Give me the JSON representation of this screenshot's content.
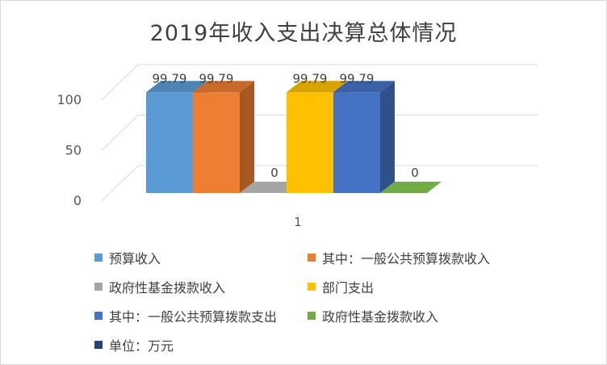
{
  "chart_data": {
    "type": "bar",
    "title": "2019年收入支出决算总体情况",
    "categories": [
      "1"
    ],
    "ylim": [
      0,
      100
    ],
    "yticks": [
      0,
      50,
      100
    ],
    "grid": true,
    "three_d": true,
    "legend_position": "bottom",
    "series": [
      {
        "name": "预算收入",
        "values": [
          99.79
        ],
        "color": "#5b9bd5"
      },
      {
        "name": "其中：一般公共预算拨款收入",
        "values": [
          99.79
        ],
        "color": "#ed7d31"
      },
      {
        "name": "政府性基金拨款收入",
        "values": [
          0
        ],
        "color": "#a5a5a5"
      },
      {
        "name": "部门支出",
        "values": [
          99.79
        ],
        "color": "#ffc000"
      },
      {
        "name": "其中：一般公共预算拨款支出",
        "values": [
          99.79
        ],
        "color": "#4472c4"
      },
      {
        "name": "政府性基金拨款收入",
        "values": [
          0
        ],
        "color": "#70ad47"
      },
      {
        "name": "单位：万元",
        "values": [
          null
        ],
        "color": "#264478"
      }
    ],
    "data_labels": [
      "99.79",
      "99.79",
      "0",
      "99.79",
      "99.79",
      "0"
    ]
  }
}
